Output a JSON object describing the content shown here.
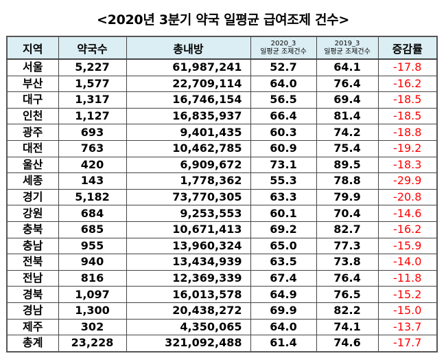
{
  "title": "<2020년 3분기 약국 일평균 급여조제 건수>",
  "colors": {
    "header_bg": "#dbeef4",
    "negative_rate": "#ff0000",
    "border": "#444444"
  },
  "table": {
    "headers": {
      "region": "지역",
      "pharmacies": "약국수",
      "total_prescriptions": "총내방",
      "avg_2020_year": "2020_3",
      "avg_2020_label": "일평균 조제건수",
      "avg_2019_year": "2019_3",
      "avg_2019_label": "일평균 조제건수",
      "change_rate": "증감률"
    },
    "rows": [
      {
        "region": "서울",
        "pharmacies": "5,227",
        "total": "61,987,241",
        "avg2020": "52.7",
        "avg2019": "64.1",
        "rate": "-17.8"
      },
      {
        "region": "부산",
        "pharmacies": "1,577",
        "total": "22,709,114",
        "avg2020": "64.0",
        "avg2019": "76.4",
        "rate": "-16.2"
      },
      {
        "region": "대구",
        "pharmacies": "1,317",
        "total": "16,746,154",
        "avg2020": "56.5",
        "avg2019": "69.4",
        "rate": "-18.5"
      },
      {
        "region": "인천",
        "pharmacies": "1,127",
        "total": "16,835,937",
        "avg2020": "66.4",
        "avg2019": "81.4",
        "rate": "-18.5"
      },
      {
        "region": "광주",
        "pharmacies": "693",
        "total": "9,401,435",
        "avg2020": "60.3",
        "avg2019": "74.2",
        "rate": "-18.8"
      },
      {
        "region": "대전",
        "pharmacies": "763",
        "total": "10,462,785",
        "avg2020": "60.9",
        "avg2019": "75.4",
        "rate": "-19.2"
      },
      {
        "region": "울산",
        "pharmacies": "420",
        "total": "6,909,672",
        "avg2020": "73.1",
        "avg2019": "89.5",
        "rate": "-18.3"
      },
      {
        "region": "세종",
        "pharmacies": "143",
        "total": "1,778,362",
        "avg2020": "55.3",
        "avg2019": "78.8",
        "rate": "-29.9"
      },
      {
        "region": "경기",
        "pharmacies": "5,182",
        "total": "73,770,305",
        "avg2020": "63.3",
        "avg2019": "79.9",
        "rate": "-20.8"
      },
      {
        "region": "강원",
        "pharmacies": "684",
        "total": "9,253,553",
        "avg2020": "60.1",
        "avg2019": "70.4",
        "rate": "-14.6"
      },
      {
        "region": "충북",
        "pharmacies": "685",
        "total": "10,671,413",
        "avg2020": "69.2",
        "avg2019": "82.7",
        "rate": "-16.2"
      },
      {
        "region": "충남",
        "pharmacies": "955",
        "total": "13,960,324",
        "avg2020": "65.0",
        "avg2019": "77.3",
        "rate": "-15.9"
      },
      {
        "region": "전북",
        "pharmacies": "940",
        "total": "13,434,939",
        "avg2020": "63.5",
        "avg2019": "73.8",
        "rate": "-14.0"
      },
      {
        "region": "전남",
        "pharmacies": "816",
        "total": "12,369,339",
        "avg2020": "67.4",
        "avg2019": "76.4",
        "rate": "-11.8"
      },
      {
        "region": "경북",
        "pharmacies": "1,097",
        "total": "16,013,578",
        "avg2020": "64.9",
        "avg2019": "76.5",
        "rate": "-15.2"
      },
      {
        "region": "경남",
        "pharmacies": "1,300",
        "total": "20,438,272",
        "avg2020": "69.9",
        "avg2019": "82.2",
        "rate": "-15.0"
      },
      {
        "region": "제주",
        "pharmacies": "302",
        "total": "4,350,065",
        "avg2020": "64.0",
        "avg2019": "74.1",
        "rate": "-13.7"
      },
      {
        "region": "총계",
        "pharmacies": "23,228",
        "total": "321,092,488",
        "avg2020": "61.4",
        "avg2019": "74.6",
        "rate": "-17.7"
      }
    ]
  }
}
